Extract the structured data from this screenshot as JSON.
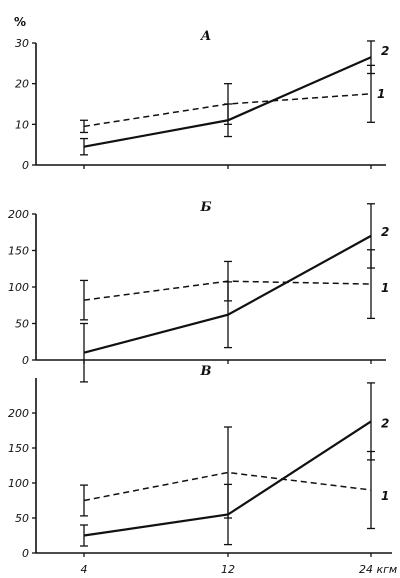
{
  "chart_data": [
    {
      "type": "line",
      "panel_label": "А",
      "unit_label": "%",
      "x": [
        4,
        12,
        24
      ],
      "ylim": [
        0,
        30
      ],
      "yticks": [
        0,
        10,
        20,
        30
      ],
      "series": [
        {
          "name": "1",
          "style": "dashed",
          "values": [
            9.5,
            15,
            17.5
          ],
          "errors": [
            1.5,
            5,
            7
          ]
        },
        {
          "name": "2",
          "style": "solid",
          "values": [
            4.5,
            11,
            26.5
          ],
          "errors": [
            2,
            4,
            4
          ]
        }
      ]
    },
    {
      "type": "line",
      "panel_label": "Б",
      "x": [
        4,
        12,
        24
      ],
      "ylim": [
        0,
        200
      ],
      "yticks": [
        0,
        50,
        100,
        150,
        200
      ],
      "series": [
        {
          "name": "1",
          "style": "dashed",
          "values": [
            82,
            108,
            104
          ],
          "errors": [
            27,
            27,
            47
          ]
        },
        {
          "name": "2",
          "style": "solid",
          "values": [
            10,
            62,
            170
          ],
          "errors": [
            40,
            45,
            44
          ]
        }
      ]
    },
    {
      "type": "line",
      "panel_label": "В",
      "x": [
        4,
        12,
        24
      ],
      "ylim": [
        0,
        200
      ],
      "yticks": [
        0,
        50,
        100,
        150,
        200
      ],
      "xticks": [
        "4",
        "12",
        "24 кгм"
      ],
      "series": [
        {
          "name": "1",
          "style": "dashed",
          "values": [
            75,
            115,
            90
          ],
          "errors": [
            22,
            65,
            55
          ]
        },
        {
          "name": "2",
          "style": "solid",
          "values": [
            25,
            55,
            188
          ],
          "errors": [
            15,
            43,
            55
          ]
        }
      ]
    }
  ]
}
